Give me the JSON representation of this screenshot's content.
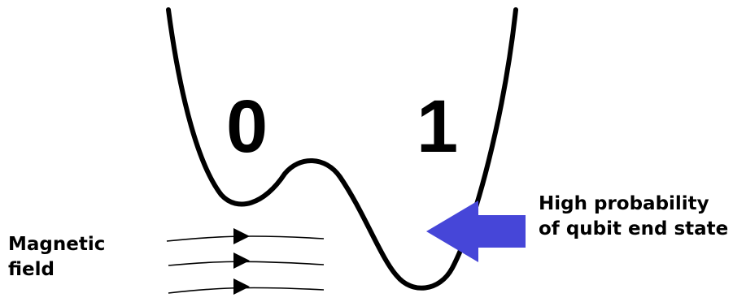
{
  "states": {
    "zero": "0",
    "one": "1"
  },
  "magnetic_field_label": {
    "line1": "Magnetic",
    "line2": "field"
  },
  "probability_label": {
    "line1": "High probability",
    "line2": "of qubit end state"
  },
  "colors": {
    "curve": "#000000",
    "arrow": "#4646d8",
    "text": "#000000"
  },
  "icons": {
    "pointer": "block-arrow-left-icon",
    "field_lines": "arrow-right-icon"
  }
}
